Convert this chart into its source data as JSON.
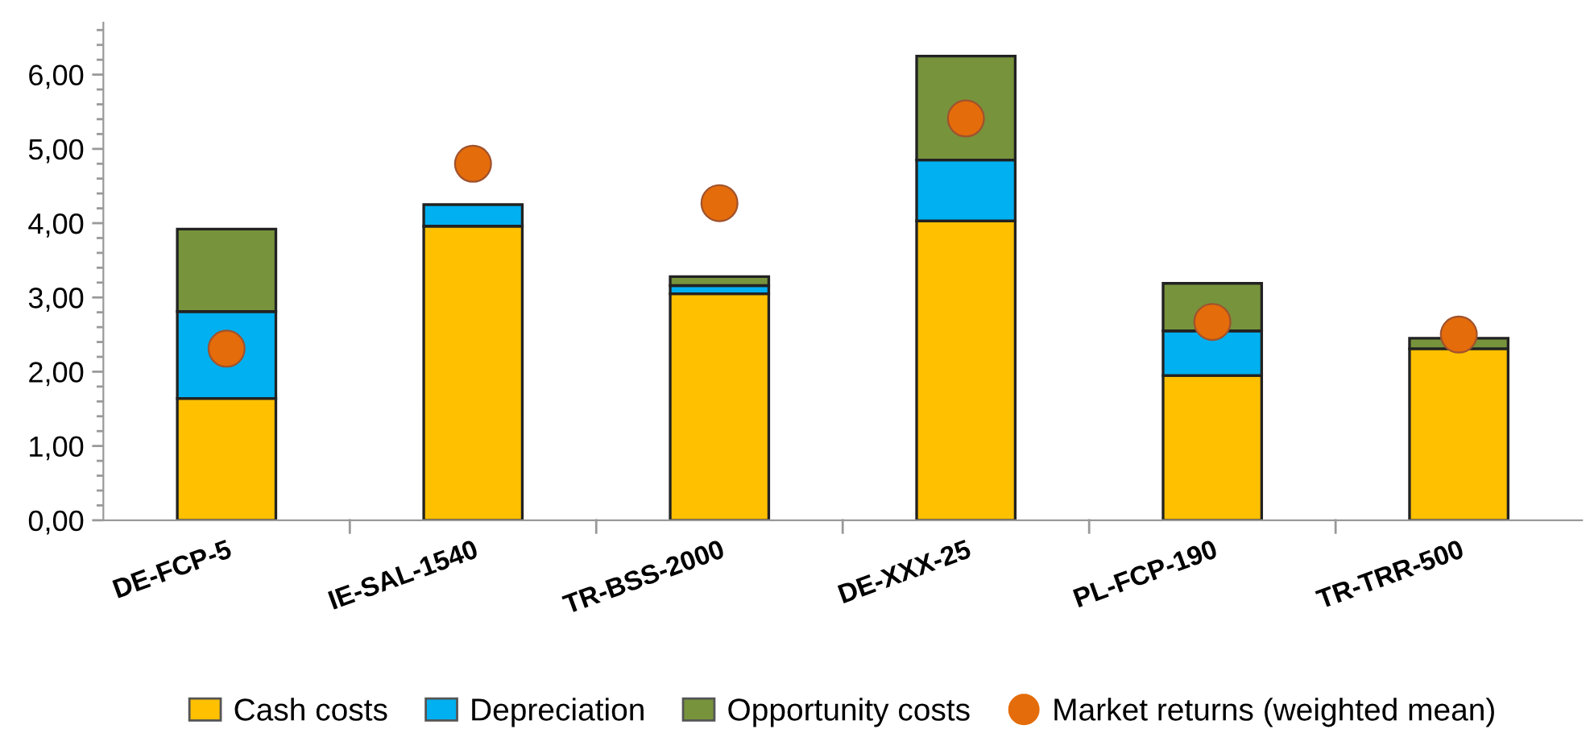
{
  "chart_data": {
    "type": "bar",
    "stacked": true,
    "categories": [
      "DE-FCP-5",
      "IE-SAL-1540",
      "TR-BSS-2000",
      "DE-XXX-25",
      "PL-FCP-190",
      "TR-TRR-500"
    ],
    "series": [
      {
        "name": "Cash costs",
        "color": "#ffc000",
        "values": [
          1.64,
          3.96,
          3.05,
          4.03,
          1.95,
          2.31
        ]
      },
      {
        "name": "Depreciation",
        "color": "#00b0f0",
        "values": [
          1.17,
          0.29,
          0.11,
          0.82,
          0.6,
          null
        ]
      },
      {
        "name": "Opportunity costs",
        "color": "#77933c",
        "values": [
          1.11,
          null,
          0.12,
          1.4,
          0.64,
          0.14
        ]
      },
      {
        "name": "Market returns (weighted mean)",
        "color": "#e46c0a",
        "type": "scatter",
        "marker": "circle",
        "x": [
          "DE-FCP-5",
          "IE-SAL-1540",
          "TR-BSS-2000",
          "DE-XXX-25",
          "PL-FCP-190",
          "TR-TRR-500"
        ],
        "values": [
          2.31,
          4.8,
          4.27,
          5.41,
          2.67,
          2.5
        ]
      }
    ],
    "ylim": [
      0,
      6.7
    ],
    "yticks": [
      {
        "value": 0,
        "label": "0,00"
      },
      {
        "value": 1,
        "label": "1,00"
      },
      {
        "value": 2,
        "label": "2,00"
      },
      {
        "value": 3,
        "label": "3,00"
      },
      {
        "value": 4,
        "label": "4,00"
      },
      {
        "value": 5,
        "label": "5,00"
      },
      {
        "value": 6,
        "label": "6,00"
      }
    ],
    "grid": false,
    "legend": "bottom"
  }
}
